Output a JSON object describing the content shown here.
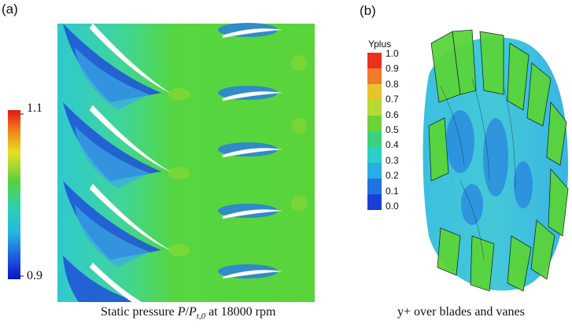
{
  "panel_a": {
    "label": "(a)",
    "colorbar": {
      "max_label": "1.1",
      "min_label": "0.9"
    },
    "caption_prefix": "Static pressure ",
    "caption_P": "P",
    "caption_slash": "/",
    "caption_Pt": "P",
    "caption_sub": "t,0",
    "caption_suffix": " at 18000 rpm"
  },
  "panel_b": {
    "label": "(b)",
    "colorbar": {
      "title": "Yplus",
      "ticks": [
        "1.0",
        "0.9",
        "0.8",
        "0.7",
        "0.6",
        "0.5",
        "0.4",
        "0.3",
        "0.2",
        "0.1",
        "0.0"
      ]
    },
    "caption": "y+ over blades and vanes"
  },
  "colors": {
    "flow_green": "#52d43c",
    "flow_cyan": "#2ccfc8",
    "low_blue": "#1a3fd8",
    "high_red": "#e8321e",
    "blade": "#ffffff"
  }
}
